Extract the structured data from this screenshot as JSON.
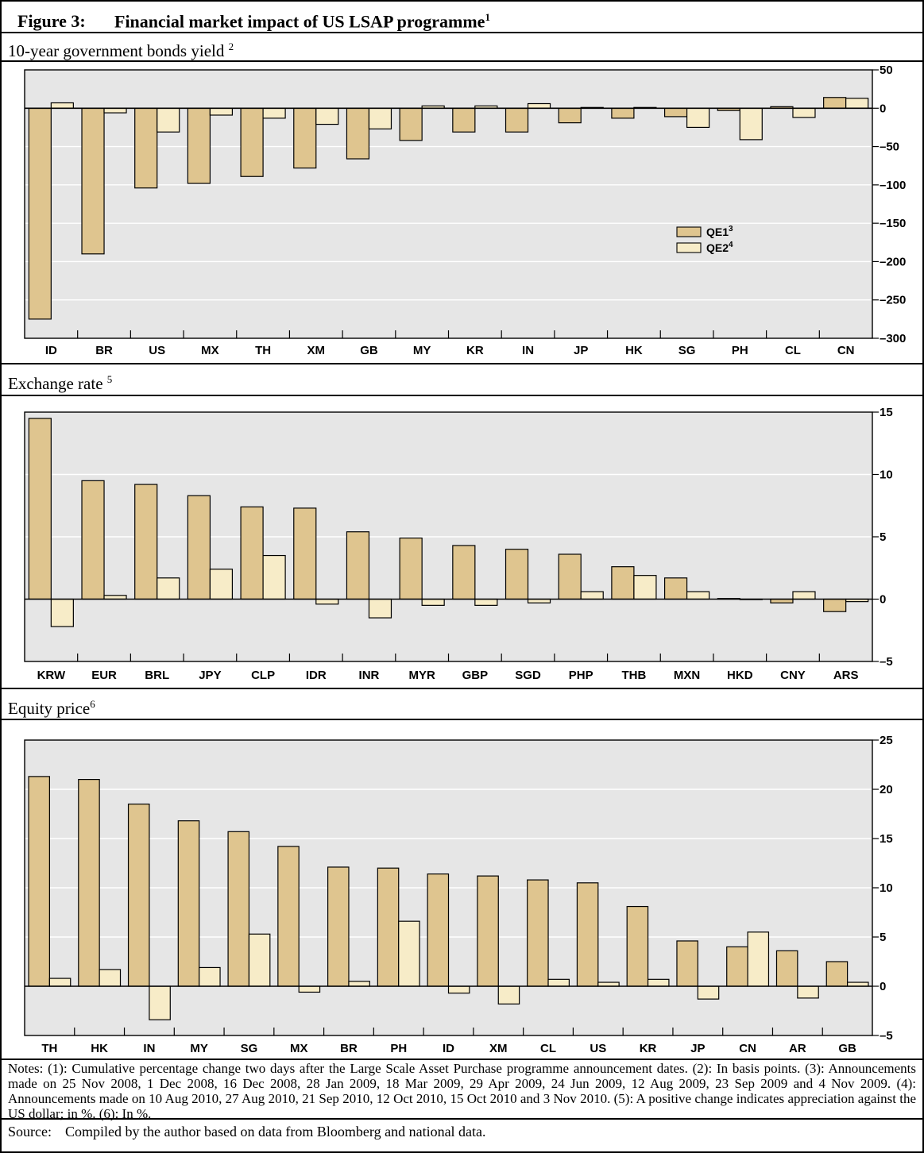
{
  "figure": {
    "number": "Figure 3:",
    "title": "Financial market impact of US LSAP programme",
    "title_sup": "1"
  },
  "colors": {
    "qe1": "#dfc58f",
    "qe2": "#f7ecc8",
    "plot_bg": "#e6e6e6",
    "gridline": "#ffffff"
  },
  "legend": [
    {
      "label": "QE1",
      "sup": "3"
    },
    {
      "label": "QE2",
      "sup": "4"
    }
  ],
  "panels": [
    {
      "title": "10-year government bonds yield ",
      "sup": "2"
    },
    {
      "title": "Exchange rate ",
      "sup": "5"
    },
    {
      "title": "Equity price",
      "sup": "6"
    }
  ],
  "chart_data": [
    {
      "type": "bar",
      "title": "10-year government bonds yield",
      "categories": [
        "ID",
        "BR",
        "US",
        "MX",
        "TH",
        "XM",
        "GB",
        "MY",
        "KR",
        "IN",
        "JP",
        "HK",
        "SG",
        "PH",
        "CL",
        "CN"
      ],
      "series": [
        {
          "name": "QE1",
          "values": [
            -275,
            -190,
            -104,
            -98,
            -89,
            -78,
            -66,
            -42,
            -31,
            -31,
            -19,
            -13,
            -11,
            -3,
            2,
            14
          ]
        },
        {
          "name": "QE2",
          "values": [
            7,
            -6,
            -31,
            -9,
            -13,
            -21,
            -27,
            3,
            3,
            6,
            1,
            1,
            -25,
            -41,
            -12,
            13
          ]
        }
      ],
      "ylim": [
        -300,
        50
      ],
      "yticks": [
        50,
        0,
        -50,
        -100,
        -150,
        -200,
        -250,
        -300
      ],
      "legend_position": "right-center"
    },
    {
      "type": "bar",
      "title": "Exchange rate",
      "categories": [
        "KRW",
        "EUR",
        "BRL",
        "JPY",
        "CLP",
        "IDR",
        "INR",
        "MYR",
        "GBP",
        "SGD",
        "PHP",
        "THB",
        "MXN",
        "HKD",
        "CNY",
        "ARS"
      ],
      "series": [
        {
          "name": "QE1",
          "values": [
            14.5,
            9.5,
            9.2,
            8.3,
            7.4,
            7.3,
            5.4,
            4.9,
            4.3,
            4.0,
            3.6,
            2.6,
            1.7,
            0.05,
            -0.3,
            -1.0
          ]
        },
        {
          "name": "QE2",
          "values": [
            -2.2,
            0.3,
            1.7,
            2.4,
            3.5,
            -0.4,
            -1.5,
            -0.5,
            -0.5,
            -0.3,
            0.6,
            1.9,
            0.6,
            0.0,
            0.6,
            -0.2
          ]
        }
      ],
      "ylim": [
        -5,
        15
      ],
      "yticks": [
        15,
        10,
        5,
        0,
        -5
      ]
    },
    {
      "type": "bar",
      "title": "Equity price",
      "categories": [
        "TH",
        "HK",
        "IN",
        "MY",
        "SG",
        "MX",
        "BR",
        "PH",
        "ID",
        "XM",
        "CL",
        "US",
        "KR",
        "JP",
        "CN",
        "AR",
        "GB"
      ],
      "series": [
        {
          "name": "QE1",
          "values": [
            21.3,
            21.0,
            18.5,
            16.8,
            15.7,
            14.2,
            12.1,
            12.0,
            11.4,
            11.2,
            10.8,
            10.5,
            8.1,
            4.6,
            4.0,
            3.6,
            2.5
          ]
        },
        {
          "name": "QE2",
          "values": [
            0.8,
            1.7,
            -3.4,
            1.9,
            5.3,
            -0.6,
            0.5,
            6.6,
            -0.7,
            -1.8,
            0.7,
            0.4,
            0.7,
            -1.3,
            5.5,
            -1.2,
            0.4
          ]
        }
      ],
      "ylim": [
        -5,
        25
      ],
      "yticks": [
        25,
        20,
        15,
        10,
        5,
        0,
        -5
      ]
    }
  ],
  "notes": "Notes: (1): Cumulative percentage change two days after the Large Scale Asset Purchase programme announcement dates. (2): In basis points. (3): Announcements made on 25 Nov 2008, 1 Dec 2008, 16 Dec 2008, 28 Jan 2009, 18 Mar 2009, 29 Apr 2009, 24 Jun 2009, 12 Aug 2009, 23 Sep 2009 and 4 Nov 2009. (4): Announcements made on 10 Aug 2010, 27 Aug 2010, 21 Sep 2010, 12 Oct 2010, 15 Oct 2010 and 3 Nov 2010. (5): A positive change indicates appreciation against the US dollar; in %. (6): In %.",
  "source": {
    "label": "Source:",
    "text": "Compiled by the author based on data from Bloomberg and national data."
  }
}
